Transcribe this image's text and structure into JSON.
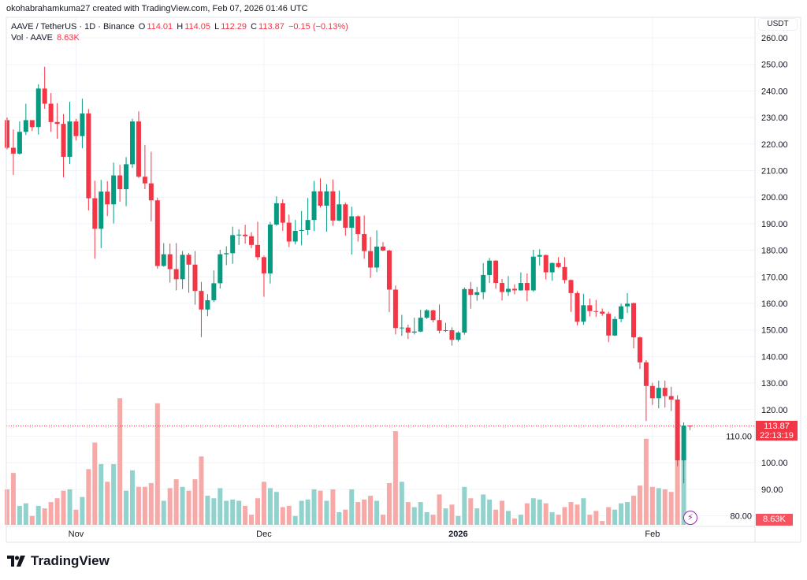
{
  "header": {
    "credit": "okohabrahamkuma27 created with TradingView.com, Feb 07, 2026 01:46 UTC"
  },
  "legend": {
    "symbol": "AAVE / TetherUS · 1D · Binance",
    "o_label": "O",
    "o": "114.01",
    "h_label": "H",
    "h": "114.05",
    "l_label": "L",
    "l": "112.29",
    "c_label": "C",
    "c": "113.87",
    "change": "−0.15 (−0.13%)",
    "vol_label": "Vol · AAVE",
    "vol": "8.63K"
  },
  "axis": {
    "unit": "USDT",
    "price_tag": "113.87",
    "countdown": "22:13:19",
    "vol_tag": "8.63K"
  },
  "logo": {
    "text": "TradingView"
  },
  "colors": {
    "up": "#089981",
    "down": "#F23645",
    "vol_up": "#92D2CC",
    "vol_down": "#F7A9A7",
    "bolt": "#9C27B0"
  },
  "chart_data": {
    "type": "candlestick",
    "title": "",
    "ylim": [
      80,
      262
    ],
    "y_ticks": [
      "260.00",
      "250.00",
      "240.00",
      "230.00",
      "220.00",
      "210.00",
      "200.00",
      "190.00",
      "180.00",
      "170.00",
      "160.00",
      "150.00",
      "140.00",
      "130.00",
      "120.00",
      "110.00",
      "100.00",
      "90.00",
      "80.00"
    ],
    "x_ticks": [
      {
        "label": "Nov",
        "date": "2025-11-01"
      },
      {
        "label": "Dec",
        "date": "2025-12-01"
      },
      {
        "label": "2026",
        "date": "2026-01-01"
      },
      {
        "label": "Feb",
        "date": "2026-02-01"
      }
    ],
    "last_price": 113.87,
    "volume_scale": "relative to the tallest bar (100)",
    "columns": [
      "date",
      "open",
      "high",
      "low",
      "close",
      "volume"
    ],
    "candles": [
      [
        "2025-10-21",
        229,
        230,
        218,
        218.6,
        28
      ],
      [
        "2025-10-22",
        218.6,
        225.5,
        208.4,
        216.4,
        41
      ],
      [
        "2025-10-23",
        216.4,
        228.5,
        216,
        224.6,
        15
      ],
      [
        "2025-10-24",
        224.6,
        235.2,
        223.4,
        229,
        17
      ],
      [
        "2025-10-25",
        229,
        229,
        224.9,
        226.4,
        7
      ],
      [
        "2025-10-26",
        226.4,
        242.5,
        223.6,
        240.9,
        15
      ],
      [
        "2025-10-27",
        240.9,
        249.1,
        233.3,
        235.2,
        13
      ],
      [
        "2025-10-28",
        235.2,
        239.2,
        224.6,
        228.3,
        18
      ],
      [
        "2025-10-29",
        228.3,
        235.4,
        222,
        227.6,
        21
      ],
      [
        "2025-10-30",
        227.6,
        231.3,
        207.5,
        215.2,
        27
      ],
      [
        "2025-10-31",
        215.2,
        235.9,
        212.5,
        228.5,
        28
      ],
      [
        "2025-11-01",
        228.5,
        229.5,
        221.4,
        223,
        12
      ],
      [
        "2025-11-02",
        223,
        237.1,
        218.4,
        231.5,
        22
      ],
      [
        "2025-11-03",
        231.5,
        233.2,
        195,
        199.6,
        44
      ],
      [
        "2025-11-04",
        199.6,
        206.2,
        176.8,
        188.1,
        65
      ],
      [
        "2025-11-05",
        188.1,
        206.5,
        180.8,
        202.1,
        48
      ],
      [
        "2025-11-06",
        202.1,
        206,
        192.9,
        197.3,
        34
      ],
      [
        "2025-11-07",
        197.3,
        213,
        190.1,
        208.2,
        48
      ],
      [
        "2025-11-08",
        208.2,
        212.2,
        198.3,
        203,
        100
      ],
      [
        "2025-11-09",
        203,
        215.1,
        196.6,
        212.4,
        27
      ],
      [
        "2025-11-10",
        212.4,
        229.5,
        211,
        228.5,
        43
      ],
      [
        "2025-11-11",
        228.5,
        232.3,
        207.2,
        207.7,
        30
      ],
      [
        "2025-11-12",
        207.7,
        219.6,
        203,
        205.2,
        30
      ],
      [
        "2025-11-13",
        205.2,
        217.1,
        190.9,
        198.8,
        33
      ],
      [
        "2025-11-14",
        198.8,
        199.8,
        173.1,
        174.1,
        96
      ],
      [
        "2025-11-15",
        174.1,
        182.7,
        173.8,
        178.5,
        19
      ],
      [
        "2025-11-16",
        178.5,
        182.5,
        167.8,
        172.9,
        29
      ],
      [
        "2025-11-17",
        172.9,
        182.7,
        164.9,
        169.1,
        36
      ],
      [
        "2025-11-18",
        169.1,
        179.7,
        165.4,
        178.3,
        30
      ],
      [
        "2025-11-19",
        178.3,
        179,
        164,
        174.6,
        27
      ],
      [
        "2025-11-20",
        174.6,
        179.7,
        159.5,
        164.7,
        36
      ],
      [
        "2025-11-21",
        164.7,
        168.1,
        147.3,
        157.7,
        54
      ],
      [
        "2025-11-22",
        157.7,
        163.5,
        155.2,
        161.2,
        23
      ],
      [
        "2025-11-23",
        161.2,
        172.4,
        160.5,
        167.6,
        21
      ],
      [
        "2025-11-24",
        167.6,
        180.2,
        165.6,
        178.5,
        29
      ],
      [
        "2025-11-25",
        178.5,
        181.5,
        174.4,
        178.9,
        19
      ],
      [
        "2025-11-26",
        178.9,
        188.9,
        174.9,
        185.7,
        20
      ],
      [
        "2025-11-27",
        185.7,
        187.9,
        182,
        185.9,
        19
      ],
      [
        "2025-11-28",
        185.9,
        189.6,
        182.5,
        185.3,
        15
      ],
      [
        "2025-11-29",
        185.3,
        186.8,
        180.8,
        182,
        8
      ],
      [
        "2025-11-30",
        182,
        190.7,
        176.3,
        177.4,
        21
      ],
      [
        "2025-12-01",
        177.4,
        178,
        162.5,
        171.3,
        34
      ],
      [
        "2025-12-02",
        171.3,
        190.7,
        167.5,
        189.7,
        29
      ],
      [
        "2025-12-03",
        189.7,
        200.3,
        189.2,
        197.7,
        26
      ],
      [
        "2025-12-04",
        197.7,
        199.2,
        187.3,
        190.4,
        14
      ],
      [
        "2025-12-05",
        190.4,
        193.4,
        181.2,
        183.3,
        15
      ],
      [
        "2025-12-06",
        183.3,
        191.4,
        182.2,
        187.3,
        7
      ],
      [
        "2025-12-07",
        187.3,
        194.8,
        181.9,
        187.6,
        19
      ],
      [
        "2025-12-08",
        187.6,
        199.7,
        185.8,
        191.4,
        20
      ],
      [
        "2025-12-09",
        191.4,
        206.1,
        187.3,
        202.2,
        28
      ],
      [
        "2025-12-10",
        202.2,
        207.1,
        196.1,
        196.8,
        27
      ],
      [
        "2025-12-11",
        196.8,
        204.9,
        187,
        202.2,
        19
      ],
      [
        "2025-12-12",
        202.2,
        206.7,
        189.2,
        191.2,
        28
      ],
      [
        "2025-12-13",
        191.2,
        202.5,
        191,
        197.3,
        10
      ],
      [
        "2025-12-14",
        197.3,
        198,
        185.5,
        188.5,
        12
      ],
      [
        "2025-12-15",
        188.5,
        196.4,
        178.4,
        192.8,
        28
      ],
      [
        "2025-12-16",
        192.8,
        193.1,
        183.3,
        186.1,
        18
      ],
      [
        "2025-12-17",
        186.1,
        193.1,
        176.8,
        179.7,
        20
      ],
      [
        "2025-12-18",
        179.7,
        185,
        169.6,
        173.5,
        23
      ],
      [
        "2025-12-19",
        173.5,
        187.5,
        171.8,
        181.4,
        19
      ],
      [
        "2025-12-20",
        181.4,
        183.1,
        179.7,
        179.9,
        8
      ],
      [
        "2025-12-21",
        179.9,
        180.2,
        156.7,
        165.2,
        33
      ],
      [
        "2025-12-22",
        165.2,
        166.7,
        148.3,
        150.7,
        74
      ],
      [
        "2025-12-23",
        150.7,
        155.7,
        147.8,
        150.9,
        34
      ],
      [
        "2025-12-24",
        150.9,
        152,
        146.6,
        149,
        18
      ],
      [
        "2025-12-25",
        149,
        154.6,
        148.3,
        149.4,
        14
      ],
      [
        "2025-12-26",
        149.4,
        157.6,
        149.2,
        154.6,
        18
      ],
      [
        "2025-12-27",
        154.6,
        157.8,
        154.1,
        157.4,
        10
      ],
      [
        "2025-12-28",
        157.4,
        157.6,
        152.9,
        153.7,
        8
      ],
      [
        "2025-12-29",
        153.7,
        159.6,
        148.7,
        149.7,
        24
      ],
      [
        "2025-12-30",
        149.7,
        152.7,
        149.2,
        149.9,
        13
      ],
      [
        "2025-12-31",
        149.9,
        151,
        144.1,
        146.3,
        16
      ],
      [
        "2026-01-01",
        146.3,
        149.5,
        145.6,
        149,
        7
      ],
      [
        "2026-01-02",
        149,
        166,
        148.2,
        165.4,
        30
      ],
      [
        "2026-01-03",
        165.4,
        168.1,
        158,
        163.2,
        21
      ],
      [
        "2026-01-04",
        163.2,
        166.2,
        161,
        164.2,
        13
      ],
      [
        "2026-01-05",
        164.2,
        175.2,
        161.6,
        170.7,
        24
      ],
      [
        "2026-01-06",
        170.7,
        177.1,
        167.7,
        176.1,
        20
      ],
      [
        "2026-01-07",
        176.1,
        176.3,
        165.5,
        167.7,
        12
      ],
      [
        "2026-01-08",
        167.7,
        169.2,
        161.1,
        164.3,
        19
      ],
      [
        "2026-01-09",
        164.3,
        170.3,
        162.8,
        165.5,
        11
      ],
      [
        "2026-01-10",
        165.5,
        167.2,
        163.4,
        164.9,
        5
      ],
      [
        "2026-01-11",
        164.9,
        171.7,
        164.8,
        167.7,
        8
      ],
      [
        "2026-01-12",
        167.7,
        171.3,
        160.8,
        164.9,
        17
      ],
      [
        "2026-01-13",
        164.9,
        180.2,
        164.4,
        177.6,
        21
      ],
      [
        "2026-01-14",
        177.6,
        180.4,
        174.3,
        178.2,
        20
      ],
      [
        "2026-01-15",
        178.2,
        178.4,
        169,
        171.7,
        17
      ],
      [
        "2026-01-16",
        171.7,
        175.4,
        168.5,
        175.2,
        10
      ],
      [
        "2026-01-17",
        175.2,
        177.4,
        173.3,
        173.7,
        8
      ],
      [
        "2026-01-18",
        173.7,
        177.4,
        167.5,
        168.8,
        14
      ],
      [
        "2026-01-19",
        168.8,
        169,
        156.8,
        163.9,
        18
      ],
      [
        "2026-01-20",
        163.9,
        164.6,
        151.7,
        153.1,
        16
      ],
      [
        "2026-01-21",
        153.1,
        163.6,
        151.9,
        159.3,
        21
      ],
      [
        "2026-01-22",
        159.3,
        161.8,
        155.1,
        157.1,
        8
      ],
      [
        "2026-01-23",
        157.1,
        161.3,
        154.9,
        156.9,
        11
      ],
      [
        "2026-01-24",
        156.9,
        158.1,
        155.3,
        156.1,
        3
      ],
      [
        "2026-01-25",
        156.1,
        156.9,
        145.4,
        147.9,
        14
      ],
      [
        "2026-01-26",
        147.9,
        155.1,
        147.7,
        154.1,
        12
      ],
      [
        "2026-01-27",
        154.1,
        159.9,
        152.9,
        158.9,
        17
      ],
      [
        "2026-01-28",
        158.9,
        163.9,
        156.4,
        159.9,
        18
      ],
      [
        "2026-01-29",
        160.1,
        160.3,
        143.1,
        147.2,
        23
      ],
      [
        "2026-01-30",
        147.2,
        147.5,
        135.3,
        137.8,
        31
      ],
      [
        "2026-01-31",
        137.8,
        138.6,
        115.7,
        128.9,
        68
      ],
      [
        "2026-02-01",
        128.9,
        130.1,
        121.7,
        124.3,
        30
      ],
      [
        "2026-02-02",
        124.3,
        130.9,
        120.5,
        128.2,
        29
      ],
      [
        "2026-02-03",
        128.2,
        130.9,
        120.8,
        125.1,
        28
      ],
      [
        "2026-02-04",
        125.1,
        128.6,
        119.5,
        123.8,
        26
      ],
      [
        "2026-02-05",
        123.8,
        125.4,
        98.7,
        100.9,
        66
      ],
      [
        "2026-02-06",
        100.9,
        115.2,
        92.3,
        114.01,
        57
      ],
      [
        "2026-02-07",
        114.01,
        114.05,
        112.29,
        113.87,
        4
      ]
    ]
  }
}
